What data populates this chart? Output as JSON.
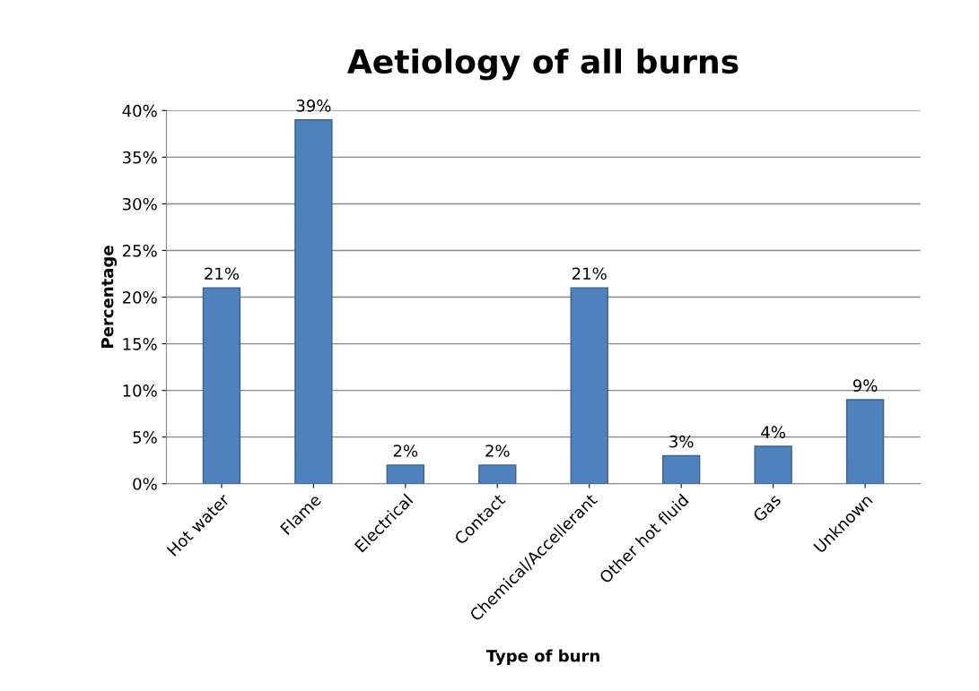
{
  "chart_data": {
    "type": "bar",
    "title": "Aetiology of all burns",
    "xlabel": "Type of burn",
    "ylabel": "Percentage",
    "categories": [
      "Hot water",
      "Flame",
      "Electrical",
      "Contact",
      "Chemical/Accellerant",
      "Other hot fluid",
      "Gas",
      "Unknown"
    ],
    "values": [
      21,
      39,
      2,
      2,
      21,
      3,
      4,
      9
    ],
    "value_labels": [
      "21%",
      "39%",
      "2%",
      "2%",
      "21%",
      "3%",
      "4%",
      "9%"
    ],
    "color": "#4f81bd",
    "ylim": [
      0,
      40
    ],
    "yticks": [
      {
        "value": 0,
        "label": "0%"
      },
      {
        "value": 5,
        "label": "5%"
      },
      {
        "value": 10,
        "label": "10%"
      },
      {
        "value": 15,
        "label": "15%"
      },
      {
        "value": 20,
        "label": "20%"
      },
      {
        "value": 25,
        "label": "25%"
      },
      {
        "value": 30,
        "label": "30%"
      },
      {
        "value": 35,
        "label": "35%"
      },
      {
        "value": 40,
        "label": "40%"
      }
    ],
    "grid": "y",
    "legend": false
  }
}
